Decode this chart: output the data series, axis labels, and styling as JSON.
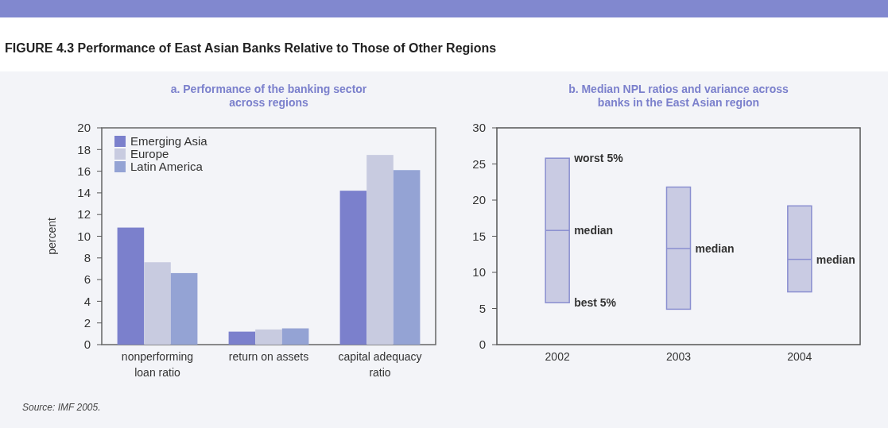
{
  "chart_data": [
    {
      "type": "bar",
      "title": "a. Performance of the banking sector across regions",
      "ylabel": "percent",
      "categories": [
        "nonperforming loan ratio",
        "return on assets",
        "capital adequacy ratio"
      ],
      "series": [
        {
          "name": "Emerging Asia",
          "color": "#7b80cc",
          "values": [
            10.8,
            1.2,
            14.2
          ]
        },
        {
          "name": "Europe",
          "color": "#c8cbe0",
          "values": [
            7.6,
            1.4,
            17.5
          ]
        },
        {
          "name": "Latin America",
          "color": "#94a3d4",
          "values": [
            6.6,
            1.5,
            16.1
          ]
        }
      ],
      "ylim": [
        0,
        20
      ],
      "yticks": [
        0,
        2,
        4,
        6,
        8,
        10,
        12,
        14,
        16,
        18,
        20
      ],
      "legend": "top left",
      "annotations": [
        "FIGURE 4.3  Performance of East Asian Banks Relative to Those of Other Regions",
        "Source:  IMF 2005."
      ]
    },
    {
      "type": "box",
      "title": "b. Median NPL ratios and variance across banks in the East Asian region",
      "categories": [
        "2002",
        "2003",
        "2004"
      ],
      "boxes": [
        {
          "low": 5.8,
          "q1": 5.8,
          "median": 15.8,
          "q3": 25.8,
          "high": 25.8
        },
        {
          "low": 4.9,
          "q1": 4.9,
          "median": 13.3,
          "q3": 21.8,
          "high": 21.8
        },
        {
          "low": 7.3,
          "q1": 7.3,
          "median": 11.8,
          "q3": 19.2,
          "high": 19.2
        }
      ],
      "ylim": [
        0,
        30
      ],
      "yticks": [
        0,
        5,
        10,
        15,
        20,
        25,
        30
      ],
      "annotations": [
        {
          "text": "worst 5%",
          "x": "2002",
          "y": 25.8
        },
        {
          "text": "median",
          "x": "2002",
          "y": 15.8
        },
        {
          "text": "best 5%",
          "x": "2002",
          "y": 5.8
        },
        {
          "text": "median",
          "x": "2003",
          "y": 13.3
        },
        {
          "text": "median",
          "x": "2004",
          "y": 11.8
        }
      ]
    }
  ]
}
